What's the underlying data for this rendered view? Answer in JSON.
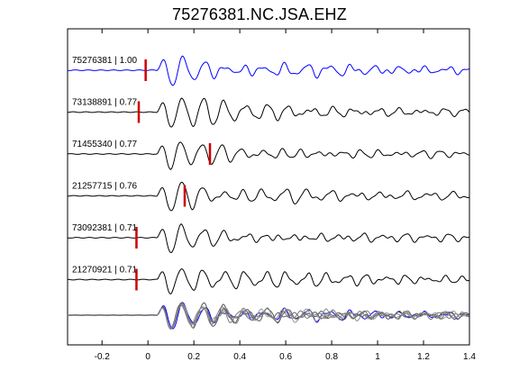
{
  "chart_data": {
    "type": "line",
    "title": "75276381.NC.JSA.EHZ",
    "xlabel": "",
    "ylabel": "",
    "xlim": [
      -0.35,
      1.4
    ],
    "xticks": [
      -0.2,
      0,
      0.2,
      0.4,
      0.6,
      0.8,
      1,
      1.2,
      1.4
    ],
    "xtick_labels": [
      "-0.2",
      "0",
      "0.2",
      "0.4",
      "0.6",
      "0.8",
      "1",
      "1.2",
      "1.4"
    ],
    "grid": false,
    "traces": [
      {
        "label": "75276381 | 1.00",
        "event_id": "75276381",
        "correlation": 1.0,
        "pick_time": -0.01,
        "color": "#0000ff",
        "seed": 3,
        "rows": "top"
      },
      {
        "label": "73138891 | 0.77",
        "event_id": "73138891",
        "correlation": 0.77,
        "pick_time": -0.04,
        "color": "#000000",
        "seed": 7
      },
      {
        "label": "71455340 | 0.77",
        "event_id": "71455340",
        "correlation": 0.77,
        "pick_time": 0.27,
        "color": "#000000",
        "seed": 11
      },
      {
        "label": "21257715 | 0.76",
        "event_id": "21257715",
        "correlation": 0.76,
        "pick_time": 0.16,
        "color": "#000000",
        "seed": 17
      },
      {
        "label": "73092381 | 0.71",
        "event_id": "73092381",
        "correlation": 0.71,
        "pick_time": -0.05,
        "color": "#000000",
        "seed": 23
      },
      {
        "label": "21270921 | 0.71",
        "event_id": "21270921",
        "correlation": 0.71,
        "pick_time": -0.05,
        "color": "#000000",
        "seed": 29
      }
    ],
    "stack": {
      "colors": [
        "#0000ff",
        "#555555",
        "#777777",
        "#999999",
        "#666666",
        "#888888",
        "#333333"
      ]
    },
    "pick_marker_color": "#cc0000"
  }
}
